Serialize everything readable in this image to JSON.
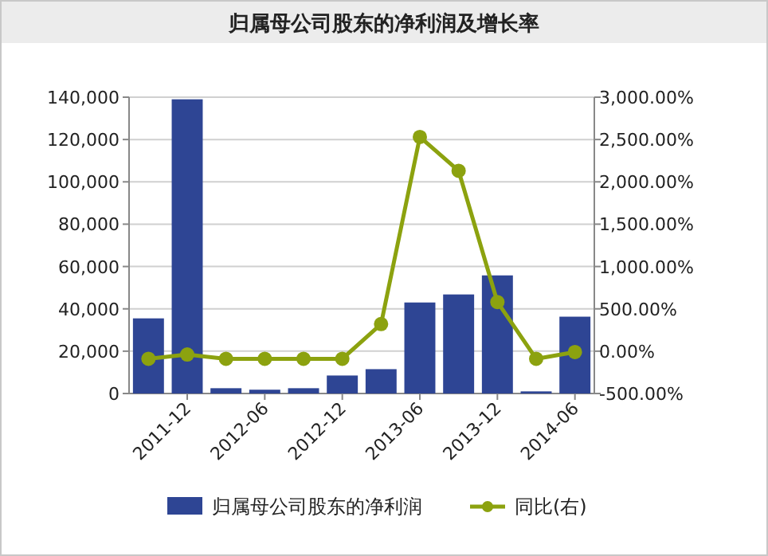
{
  "chart_data": {
    "type": "bar",
    "title": "归属母公司股东的净利润及增长率",
    "categories": [
      null,
      "2011-12",
      null,
      "2012-06",
      null,
      "2012-12",
      null,
      "2013-06",
      null,
      "2013-12",
      null,
      "2014-06"
    ],
    "series": [
      {
        "name": "归属母公司股东的净利润",
        "color": "#2e4594",
        "values": [
          35500,
          139000,
          2500,
          1800,
          2500,
          8500,
          11500,
          43000,
          46800,
          55800,
          1000,
          36300
        ]
      },
      {
        "name": "同比(右)",
        "type": "line",
        "axis": "y2",
        "color": "#8ca20f",
        "marker": "circle",
        "values": [
          -90,
          -40,
          -90,
          -90,
          -90,
          -90,
          320,
          2530,
          2130,
          580,
          -90,
          -10
        ]
      }
    ],
    "ylim": [
      0,
      140000
    ],
    "yticks": [
      {
        "value": 0,
        "label": "0"
      },
      {
        "value": 20000,
        "label": "20,000"
      },
      {
        "value": 40000,
        "label": "40,000"
      },
      {
        "value": 60000,
        "label": "60,000"
      },
      {
        "value": 80000,
        "label": "80,000"
      },
      {
        "value": 100000,
        "label": "100,000"
      },
      {
        "value": 120000,
        "label": "120,000"
      },
      {
        "value": 140000,
        "label": "140,000"
      }
    ],
    "y2lim": [
      -500,
      3000
    ],
    "y2ticks": [
      {
        "value": -500,
        "label": "-500.00%"
      },
      {
        "value": 0,
        "label": "0.00%"
      },
      {
        "value": 500,
        "label": "500.00%"
      },
      {
        "value": 1000,
        "label": "1,000.00%"
      },
      {
        "value": 1500,
        "label": "1,500.00%"
      },
      {
        "value": 2000,
        "label": "2,000.00%"
      },
      {
        "value": 2500,
        "label": "2,500.00%"
      },
      {
        "value": 3000,
        "label": "3,000.00%"
      }
    ],
    "grid": "y",
    "legend": "bottom"
  }
}
